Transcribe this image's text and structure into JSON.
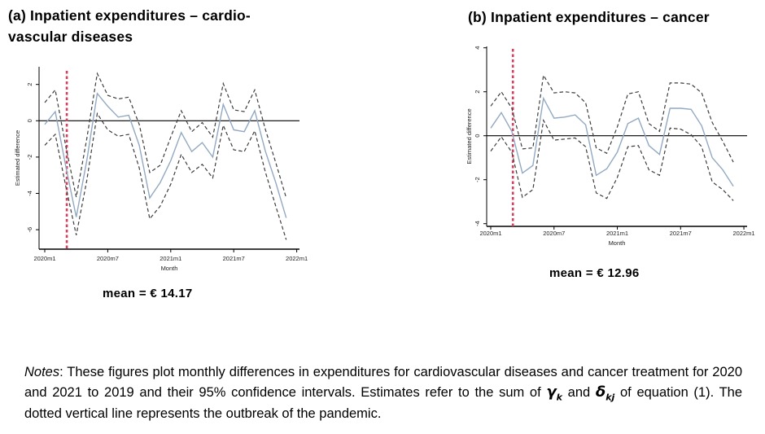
{
  "panel_a": {
    "title_line1": "(a)  Inpatient expenditures – cardio-",
    "title_line2": "vascular diseases",
    "mean_label": "mean = € 14.17"
  },
  "panel_b": {
    "title": "(b)  Inpatient expenditures – cancer",
    "mean_label": "mean = € 12.96"
  },
  "notes": {
    "label": "Notes",
    "text_1": ": These figures plot monthly differences in expenditures for cardiovascular diseases and cancer treatment for 2020 and 2021 to 2019 and their 95% confidence intervals. Estimates refer to the sum of ",
    "gamma": "γ",
    "gamma_sub": "k",
    "mid_text": " and ",
    "delta": "δ",
    "delta_sub": "kj",
    "text_2": " of equation (1).  The dotted vertical line represents the outbreak of the pandemic."
  },
  "colors": {
    "estimate_line": "#92a9c2",
    "ci_line": "#3d3d3d",
    "pandemic_line": "#d6405c",
    "axis": "#000000",
    "tick_text": "#222222"
  },
  "chart_data": [
    {
      "id": "chart-a",
      "type": "line",
      "title": "(a) Inpatient expenditures – cardiovascular diseases",
      "xlabel": "Month",
      "ylabel": "Estimated difference",
      "x_start": "2020m1",
      "x_frequency": "monthly",
      "x_tick_labels": [
        "2020m1",
        "2020m7",
        "2021m1",
        "2021m7",
        "2022m1"
      ],
      "x_tick_months": [
        0,
        6,
        12,
        18,
        24
      ],
      "y_ticks": [
        2,
        0,
        -2,
        -4,
        -6
      ],
      "ylim": [
        -7.1,
        3.0
      ],
      "pandemic_line_month": 2.1,
      "zero_line": true,
      "series": [
        {
          "name": "estimate",
          "style": "solid",
          "values": [
            -0.2,
            0.5,
            -2.5,
            -5.3,
            -2.2,
            1.5,
            0.8,
            0.2,
            0.3,
            -1.35,
            -4.25,
            -3.4,
            -2.2,
            -0.65,
            -1.7,
            -1.2,
            -2.0,
            0.9,
            -0.5,
            -0.6,
            0.55,
            -1.65,
            -3.4,
            -5.35
          ]
        },
        {
          "name": "ci_upper_95",
          "style": "dashed",
          "values": [
            1.0,
            1.7,
            -1.4,
            -4.2,
            -1.0,
            2.6,
            1.4,
            1.2,
            1.3,
            -0.2,
            -2.85,
            -2.45,
            -0.9,
            0.55,
            -0.6,
            -0.1,
            -0.9,
            2.05,
            0.6,
            0.5,
            1.7,
            -0.45,
            -2.3,
            -4.25
          ]
        },
        {
          "name": "ci_lower_95",
          "style": "dashed",
          "values": [
            -1.35,
            -0.75,
            -3.6,
            -6.3,
            -3.3,
            0.4,
            -0.5,
            -0.85,
            -0.75,
            -2.6,
            -5.4,
            -4.7,
            -3.5,
            -1.85,
            -2.85,
            -2.4,
            -3.15,
            -0.25,
            -1.6,
            -1.7,
            -0.55,
            -2.8,
            -4.7,
            -6.55
          ]
        }
      ],
      "mean": "mean = € 14.17"
    },
    {
      "id": "chart-b",
      "type": "line",
      "title": "(b) Inpatient expenditures – cancer",
      "xlabel": "Month",
      "ylabel": "Estimated difference",
      "x_start": "2020m1",
      "x_frequency": "monthly",
      "x_tick_labels": [
        "2020m1",
        "2020m7",
        "2021m1",
        "2021m7",
        "2022m1"
      ],
      "x_tick_months": [
        0,
        6,
        12,
        18,
        24
      ],
      "y_ticks": [
        4,
        2,
        0,
        -2,
        -4
      ],
      "ylim": [
        -4.2,
        4.1
      ],
      "pandemic_line_month": 2.1,
      "zero_line": true,
      "series": [
        {
          "name": "estimate",
          "style": "solid",
          "values": [
            0.35,
            1.05,
            0.2,
            -1.7,
            -1.35,
            1.7,
            0.8,
            0.85,
            0.95,
            0.5,
            -1.8,
            -1.5,
            -0.75,
            0.55,
            0.8,
            -0.45,
            -0.85,
            1.25,
            1.25,
            1.2,
            0.45,
            -1.0,
            -1.55,
            -2.3
          ]
        },
        {
          "name": "ci_upper_95",
          "style": "dashed",
          "values": [
            1.35,
            2.0,
            1.25,
            -0.6,
            -0.55,
            2.75,
            1.95,
            2.0,
            1.95,
            1.5,
            -0.55,
            -0.8,
            0.4,
            1.9,
            2.0,
            0.55,
            0.2,
            2.4,
            2.4,
            2.35,
            1.95,
            0.6,
            -0.25,
            -1.2
          ]
        },
        {
          "name": "ci_lower_95",
          "style": "dashed",
          "values": [
            -0.7,
            -0.05,
            -0.75,
            -2.8,
            -2.45,
            0.7,
            -0.2,
            -0.15,
            -0.1,
            -0.5,
            -2.6,
            -2.85,
            -1.9,
            -0.5,
            -0.45,
            -1.55,
            -1.8,
            0.35,
            0.3,
            0.05,
            -0.5,
            -2.1,
            -2.45,
            -2.95
          ]
        }
      ],
      "mean": "mean = € 12.96"
    }
  ]
}
